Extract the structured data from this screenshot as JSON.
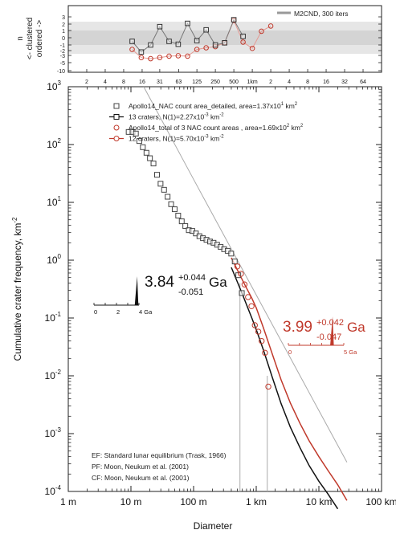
{
  "chart_data": [
    {
      "type": "scatter",
      "panel": "randomness",
      "legend": "M2CND, 300 iters",
      "legend_position": "top-right",
      "ylabel_lines": [
        "n",
        "<- clustered",
        "ordered ->"
      ],
      "yticks": [
        "3",
        "2",
        "1",
        "0",
        "-1",
        "-2",
        "-3",
        "-5",
        "-10"
      ],
      "xtick_labels": [
        {
          "v": 0.002,
          "t": "2"
        },
        {
          "v": 0.004,
          "t": "4"
        },
        {
          "v": 0.008,
          "t": "8"
        },
        {
          "v": 0.016,
          "t": "16"
        },
        {
          "v": 0.031,
          "t": "31"
        },
        {
          "v": 0.063,
          "t": "63"
        },
        {
          "v": 0.125,
          "t": "125"
        },
        {
          "v": 0.25,
          "t": "250"
        },
        {
          "v": 0.5,
          "t": "500"
        },
        {
          "v": 1,
          "t": "1km"
        },
        {
          "v": 2,
          "t": "2"
        },
        {
          "v": 4,
          "t": "4"
        },
        {
          "v": 8,
          "t": "8"
        },
        {
          "v": 16,
          "t": "16"
        },
        {
          "v": 32,
          "t": "32"
        },
        {
          "v": 64,
          "t": "64"
        }
      ],
      "series": [
        {
          "color": "#333333",
          "marker": "square",
          "points": [
            [
              0.011,
              -0.5
            ],
            [
              0.0155,
              -2.3
            ],
            [
              0.022,
              -1.0
            ],
            [
              0.031,
              1.6
            ],
            [
              0.044,
              -0.5
            ],
            [
              0.062,
              -0.9
            ],
            [
              0.088,
              2.1
            ],
            [
              0.125,
              -0.4
            ],
            [
              0.177,
              1.1
            ],
            [
              0.25,
              -1.0
            ],
            [
              0.354,
              -0.7
            ],
            [
              0.5,
              2.6
            ],
            [
              0.707,
              0.2
            ]
          ]
        },
        {
          "color": "#c0392b",
          "marker": "circle",
          "points": [
            [
              0.011,
              -1.8
            ],
            [
              0.0155,
              -3.6
            ],
            [
              0.022,
              -3.9
            ],
            [
              0.031,
              -3.6
            ],
            [
              0.044,
              -3.2
            ],
            [
              0.062,
              -3.1
            ],
            [
              0.088,
              -3.2
            ],
            [
              0.125,
              -1.8
            ],
            [
              0.177,
              -1.5
            ],
            [
              0.25,
              -1.3
            ],
            [
              0.354,
              -0.7
            ],
            [
              0.5,
              2.5
            ],
            [
              0.707,
              -0.6
            ],
            [
              1.0,
              -1.6
            ],
            [
              1.41,
              0.9
            ],
            [
              2.0,
              1.7
            ]
          ]
        }
      ]
    },
    {
      "type": "scatter",
      "panel": "csfd",
      "xlabel": "Diameter",
      "ylabel": "Cumulative crater frequency, km",
      "ylabel_unit_exp": "-2",
      "x_scale": "log",
      "y_scale": "log",
      "xlim": [
        0.001,
        100
      ],
      "ylim": [
        0.0001,
        1000
      ],
      "xtick_labels": [
        {
          "v": 0.001,
          "t": "1 m"
        },
        {
          "v": 0.01,
          "t": "10 m"
        },
        {
          "v": 0.1,
          "t": "100 m"
        },
        {
          "v": 1,
          "t": "1 km"
        },
        {
          "v": 10,
          "t": "10 km"
        },
        {
          "v": 100,
          "t": "100 km"
        }
      ],
      "ytick_labels": [
        {
          "v": 0.0001,
          "m": "10",
          "e": "-4"
        },
        {
          "v": 0.001,
          "m": "10",
          "e": "-3"
        },
        {
          "v": 0.01,
          "m": "10",
          "e": "-2"
        },
        {
          "v": 0.1,
          "m": "10",
          "e": "-1"
        },
        {
          "v": 1,
          "m": "10",
          "e": "0"
        },
        {
          "v": 10,
          "m": "10",
          "e": "1"
        },
        {
          "v": 100,
          "m": "10",
          "e": "2"
        },
        {
          "v": 1000,
          "m": "10",
          "e": "3"
        }
      ],
      "legend": [
        {
          "marker": "square",
          "color": "#444444",
          "text": "Apollo14_NAC count area_detailed, area=1.37x10",
          "sup": "1",
          "tail": " km",
          "sup2": "2"
        },
        {
          "marker": "square-line",
          "color": "#111111",
          "text": "13 craters, N(1)=2.27x10",
          "sup": "-3",
          "tail": " km",
          "sup2": "-2"
        },
        {
          "marker": "circle",
          "color": "#c0392b",
          "text": "Apollo14_total of 3 NAC count areas , area=1.69x10",
          "sup": "2",
          "tail": " km",
          "sup2": "2"
        },
        {
          "marker": "circle-line",
          "color": "#c0392b",
          "text": "12 craters, N(1)=5.70x10",
          "sup": "-3",
          "tail": " km",
          "sup2": "-2"
        }
      ],
      "series": [
        {
          "name": "Apollo14_NAC count area_detailed",
          "color": "#444444",
          "marker": "square",
          "x": [
            0.0092,
            0.0106,
            0.012,
            0.0136,
            0.0155,
            0.0177,
            0.0201,
            0.0229,
            0.0261,
            0.0297,
            0.0338,
            0.0385,
            0.0438,
            0.0499,
            0.0568,
            0.0647,
            0.0737,
            0.0839,
            0.0955,
            0.1088,
            0.1239,
            0.141,
            0.1606,
            0.1829,
            0.2082,
            0.2371,
            0.27,
            0.3074,
            0.35,
            0.3985,
            0.4538,
            0.5167,
            0.5884
          ],
          "y": [
            165,
            165,
            155,
            115,
            90,
            72,
            58,
            47,
            30,
            21,
            16.5,
            12.5,
            9.3,
            7.6,
            5.9,
            4.7,
            3.9,
            3.3,
            3.2,
            2.9,
            2.6,
            2.4,
            2.25,
            2.1,
            2.0,
            1.85,
            1.7,
            1.55,
            1.45,
            1.3,
            0.95,
            0.55,
            0.27
          ]
        },
        {
          "name": "Apollo14_total of 3 NAC count areas",
          "color": "#c0392b",
          "marker": "circle",
          "x": [
            0.5,
            0.57,
            0.65,
            0.74,
            0.84,
            0.95,
            1.08,
            1.22,
            1.38,
            1.56
          ],
          "y": [
            0.78,
            0.58,
            0.38,
            0.23,
            0.16,
            0.075,
            0.058,
            0.04,
            0.025,
            0.0065
          ]
        }
      ],
      "model_curves": [
        {
          "color": "#111111",
          "x": [
            0.4,
            0.5,
            0.6,
            0.7,
            0.85,
            1.0,
            1.3,
            1.8,
            2.5,
            3.5,
            5,
            7,
            10,
            14,
            20
          ],
          "y": [
            0.75,
            0.42,
            0.26,
            0.17,
            0.1,
            0.063,
            0.028,
            0.0095,
            0.0033,
            0.0013,
            0.00057,
            0.00028,
            0.00015,
            9e-05,
            5e-05
          ]
        },
        {
          "color": "#c0392b",
          "x": [
            0.4,
            0.55,
            0.7,
            0.85,
            1.0,
            1.3,
            1.8,
            2.5,
            3.5,
            5,
            7,
            10,
            14,
            20,
            28
          ],
          "y": [
            1.1,
            0.55,
            0.33,
            0.22,
            0.15,
            0.068,
            0.024,
            0.0085,
            0.0034,
            0.0015,
            0.00075,
            0.0004,
            0.00023,
            0.00013,
            7e-05
          ]
        },
        {
          "color": "#aaaaaa",
          "x": [
            0.016,
            0.1,
            1,
            10,
            28
          ],
          "y": [
            1000,
            25,
            0.25,
            0.0025,
            0.00032
          ]
        }
      ],
      "fit_ranges": [
        {
          "color": "#aaaaaa",
          "x": [
            0.55,
            0.55
          ],
          "y": [
            0.0001,
            0.4
          ]
        },
        {
          "color": "#aaaaaa",
          "x": [
            1.5,
            1.5
          ],
          "y": [
            0.0001,
            0.01
          ]
        }
      ],
      "ages": [
        {
          "color": "#111111",
          "value": "3.84",
          "plus": "+0.044",
          "minus": "-0.051",
          "unit": "Ga",
          "axis_labels": [
            "0",
            "2",
            "4 Ga"
          ],
          "peak_at": 3.84,
          "axis_max": 4
        },
        {
          "color": "#c0392b",
          "value": "3.99",
          "plus": "+0.042",
          "minus": "-0.047",
          "unit": "Ga",
          "axis_labels": [
            "0",
            "5 Ga"
          ],
          "peak_at": 3.99,
          "axis_max": 5
        }
      ],
      "annotations": [
        "EF: Standard lunar equilibrium (Trask, 1966)",
        "PF: Moon, Neukum et al. (2001)",
        "CF: Moon, Neukum et al. (2001)"
      ]
    }
  ]
}
